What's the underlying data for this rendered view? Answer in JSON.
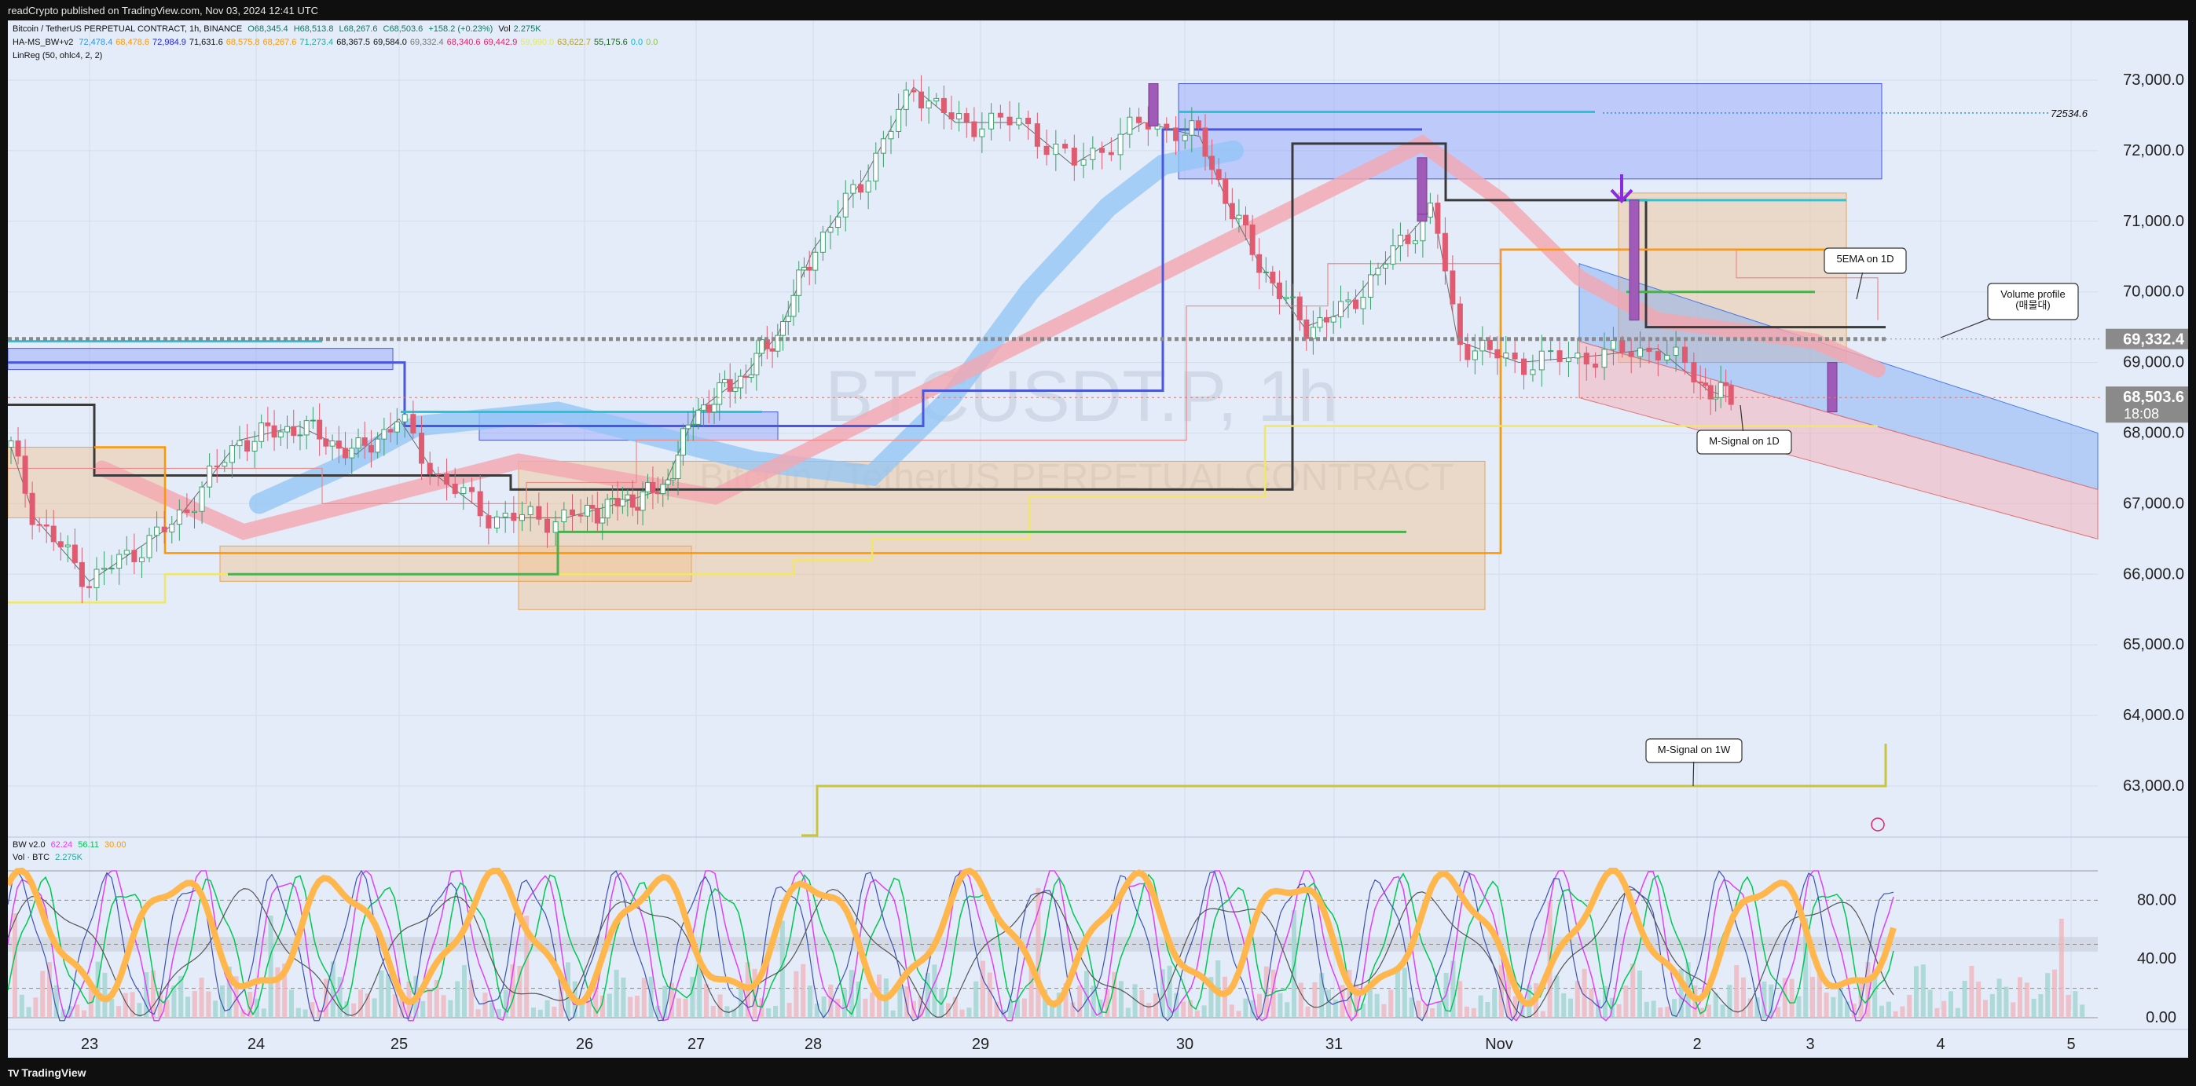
{
  "header": {
    "published": "readCrypto published on TradingView.com, Nov 03, 2024 12:41 UTC"
  },
  "legend": {
    "line1": {
      "symbol": "Bitcoin / TetherUS PERPETUAL CONTRACT, 1h, BINANCE",
      "o": "O68,345.4",
      "h": "H68,513.8",
      "l": "L68,267.6",
      "c": "C68,503.6",
      "chg": "+158.2 (+0.23%)",
      "vol_label": "Vol",
      "vol": "2.275K"
    },
    "line2": {
      "name": "HA-MS_BW+v2",
      "values": [
        {
          "text": "72,478.4",
          "color": "#2196f3"
        },
        {
          "text": "68,478.6",
          "color": "#ff9800"
        },
        {
          "text": "72,984.9",
          "color": "#1e22e8"
        },
        {
          "text": "71,631.6",
          "color": "#111111"
        },
        {
          "text": "68,575.8",
          "color": "#ff9800"
        },
        {
          "text": "68,267.6",
          "color": "#ff9800"
        },
        {
          "text": "71,273.4",
          "color": "#26a69a"
        },
        {
          "text": "68,367.5",
          "color": "#111111"
        },
        {
          "text": "69,584.0",
          "color": "#111111"
        },
        {
          "text": "69,332.4",
          "color": "#777777"
        },
        {
          "text": "68,340.6",
          "color": "#e91e63"
        },
        {
          "text": "69,442.9",
          "color": "#e91e63"
        },
        {
          "text": "59,990.0",
          "color": "#e8e85a"
        },
        {
          "text": "63,622.7",
          "color": "#b3a020"
        },
        {
          "text": "55,175.6",
          "color": "#1b5e20"
        },
        {
          "text": "0.0",
          "color": "#00bcd4"
        },
        {
          "text": "0.0",
          "color": "#8bc34a"
        }
      ]
    },
    "line3": {
      "name": "LinReg (50, ohlc4, 2, 2)"
    },
    "osc": {
      "name": "BW v2.0",
      "v1": {
        "text": "62.24",
        "color": "#e040fb"
      },
      "v2": {
        "text": "56.11",
        "color": "#00c853"
      },
      "v3": {
        "text": "30.00",
        "color": "#ff9800"
      }
    },
    "vol": {
      "name": "Vol · BTC",
      "value": "2.275K",
      "color": "#26a69a"
    }
  },
  "watermark": {
    "symbol": "BTCUSDT.P, 1h",
    "desc": "Bitcoin / TetherUS PERPETUAL CONTRACT"
  },
  "annotations": {
    "ema": "5EMA on 1D",
    "volume_profile_line1": "Volume profile",
    "volume_profile_line2": "(매물대)",
    "msignal_1d": "M-Signal on 1D",
    "msignal_1w": "M-Signal on 1W",
    "level_label": "72534.6"
  },
  "price_labels": {
    "vp": "69,332.4",
    "last": "68,503.6",
    "countdown": "18:08"
  },
  "footer": {
    "brand": "TradingView"
  },
  "colors": {
    "background": "#e3ecf8",
    "bull": "#26a69a",
    "bear": "#ef5350",
    "vp_line": "#808080",
    "blue_band": "#90c4f5",
    "pink_band": "#f4a6b0"
  },
  "chart_data": {
    "type": "candlestick",
    "title": "Bitcoin / TetherUS PERPETUAL CONTRACT, 1h, BINANCE",
    "y_axis": {
      "ticks": [
        63000,
        64000,
        65000,
        66000,
        67000,
        68000,
        69000,
        70000,
        71000,
        72000,
        73000
      ],
      "tick_labels": [
        "63,000.0",
        "64,000.0",
        "65,000.0",
        "66,000.0",
        "67,000.0",
        "68,000.0",
        "69,000.0",
        "70,000.0",
        "71,000.0",
        "72,000.0",
        "73,000.0"
      ],
      "ylim": [
        62300,
        73800
      ]
    },
    "x_axis": {
      "labels": [
        "23",
        "24",
        "25",
        "26",
        "27",
        "28",
        "29",
        "30",
        "31",
        "Nov",
        "2",
        "3",
        "4",
        "5"
      ]
    },
    "levels": {
      "volume_profile": 69332.4,
      "last_price": 68503.6,
      "dotted_level": 72534.6
    },
    "price_path": [
      [
        0,
        67800
      ],
      [
        0.15,
        66800
      ],
      [
        0.5,
        65900
      ],
      [
        1.0,
        66700
      ],
      [
        1.4,
        67900
      ],
      [
        1.8,
        68100
      ],
      [
        2.2,
        67700
      ],
      [
        2.5,
        68200
      ],
      [
        2.7,
        67400
      ],
      [
        3.0,
        66800
      ],
      [
        3.4,
        66800
      ],
      [
        3.8,
        67000
      ],
      [
        4.2,
        67200
      ],
      [
        4.5,
        68300
      ],
      [
        4.9,
        68800
      ],
      [
        5.2,
        69400
      ],
      [
        5.5,
        70600
      ],
      [
        5.8,
        71600
      ],
      [
        6.1,
        72900
      ],
      [
        6.35,
        72400
      ],
      [
        6.7,
        72400
      ],
      [
        6.95,
        71800
      ],
      [
        7.3,
        72400
      ],
      [
        7.6,
        72200
      ],
      [
        7.8,
        71200
      ],
      [
        8.0,
        70400
      ],
      [
        8.3,
        69500
      ],
      [
        8.55,
        69700
      ],
      [
        8.8,
        70400
      ],
      [
        9.1,
        71200
      ],
      [
        9.25,
        69300
      ],
      [
        9.6,
        69000
      ],
      [
        10.0,
        69100
      ],
      [
        10.3,
        69200
      ],
      [
        10.6,
        68600
      ],
      [
        10.8,
        68500
      ]
    ],
    "oscillator": {
      "name": "BW v2.0",
      "values": {
        "line1": 62.24,
        "line2": 56.11,
        "line3": 30.0
      },
      "ticks": [
        0,
        40,
        80
      ],
      "tick_labels": [
        "0.00",
        "40.00",
        "80.00"
      ]
    }
  }
}
